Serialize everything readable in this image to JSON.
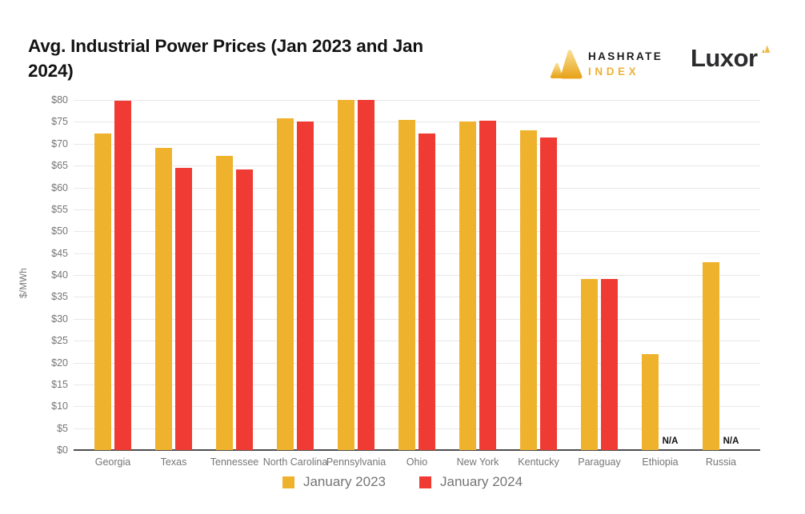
{
  "title": "Avg. Industrial Power Prices (Jan 2023 and Jan 2024)",
  "brand": {
    "hashrate_logo_line1": "HASHRATE",
    "hashrate_logo_line2": "INDEX",
    "luxor_logo_text": "Luxor"
  },
  "colors": {
    "series_2023": "#efb22d",
    "series_2024": "#ef3b33",
    "gridline": "#e8e8e8",
    "axis_line": "#4d4d4d",
    "tick_text": "#757575",
    "title_text": "#131313",
    "brand_gold": "#ecb23a"
  },
  "chart_data": {
    "type": "bar",
    "title": "Avg. Industrial Power Prices (Jan 2023 and Jan 2024)",
    "xlabel": "",
    "ylabel": "$/MWh",
    "ylim": [
      0,
      80
    ],
    "ytick_step": 5,
    "ytick_prefix": "$",
    "grid": true,
    "legend_position": "bottom",
    "null_display": "N/A",
    "categories": [
      "Georgia",
      "Texas",
      "Tennessee",
      "North Carolina",
      "Pennsylvania",
      "Ohio",
      "New York",
      "Kentucky",
      "Paraguay",
      "Ethiopia",
      "Russia"
    ],
    "series": [
      {
        "name": "January 2023",
        "color": "#efb22d",
        "values": [
          72.4,
          69.0,
          67.3,
          75.8,
          80.0,
          75.4,
          75.0,
          73.1,
          39.0,
          22.0,
          43.0
        ]
      },
      {
        "name": "January 2024",
        "color": "#ef3b33",
        "values": [
          79.9,
          64.4,
          64.1,
          75.1,
          80.0,
          72.4,
          75.3,
          71.4,
          39.0,
          null,
          null
        ]
      }
    ]
  }
}
